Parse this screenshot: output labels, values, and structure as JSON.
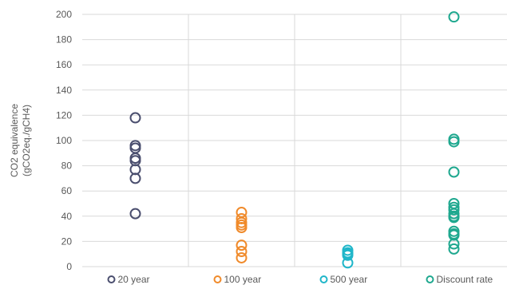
{
  "chart_data": {
    "type": "scatter",
    "title": "",
    "ylabel": [
      "CO2 equivalence",
      "(gCO2eq./gCH4)"
    ],
    "xlabel": "",
    "ylim": [
      0,
      200
    ],
    "yticks": [
      0,
      20,
      40,
      60,
      80,
      100,
      120,
      140,
      160,
      180,
      200
    ],
    "grid": true,
    "legend_position": "bottom",
    "series": [
      {
        "name": "20 year",
        "color": "#4a4e6e",
        "values": [
          118,
          96,
          94,
          86,
          84,
          77,
          70,
          42
        ]
      },
      {
        "name": "100 year",
        "color": "#f08a2a",
        "values": [
          43,
          38,
          35,
          33,
          31,
          17,
          12,
          7
        ]
      },
      {
        "name": "500 year",
        "color": "#1fb6c9",
        "values": [
          13,
          11,
          10,
          9,
          3
        ]
      },
      {
        "name": "Discount rate",
        "color": "#1fa88f",
        "values": [
          198,
          101,
          99,
          75,
          50,
          47,
          45,
          42,
          40,
          39,
          28,
          26,
          25,
          18,
          14
        ]
      }
    ]
  }
}
